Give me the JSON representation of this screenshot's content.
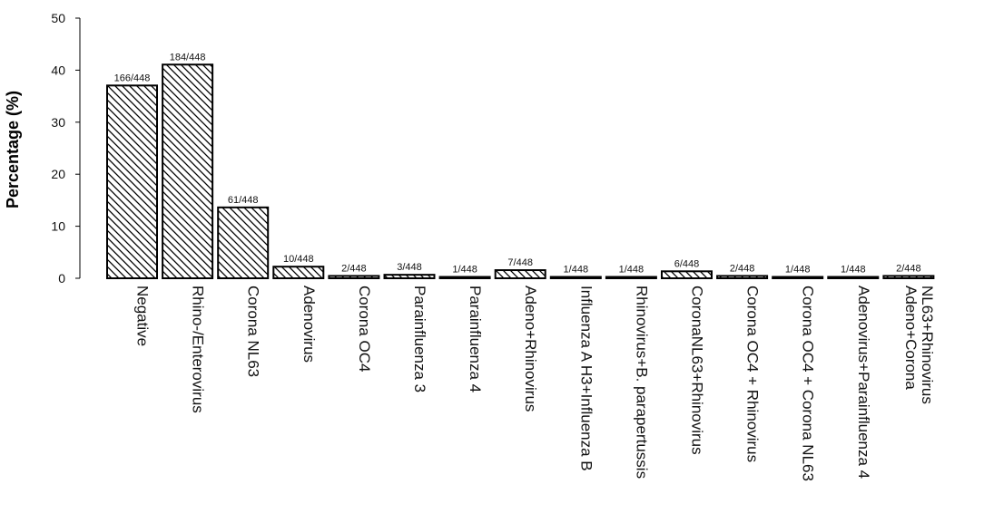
{
  "chart_data": {
    "type": "bar",
    "title": "",
    "xlabel": "",
    "ylabel": "Percentage (%)",
    "ylim": [
      0,
      50
    ],
    "yticks": [
      0,
      10,
      20,
      30,
      40,
      50
    ],
    "grid": false,
    "bar_fill": "diagonal-hatch",
    "categories": [
      "Negative",
      "Rhino-/Enterovirus",
      "Corona NL63",
      "Adenovirus",
      "Corona OC4",
      "Parainfluenza 3",
      "Parainfluenza 4",
      "Adeno+Rhinovirus",
      "Influenza A H3+Influenza B",
      "Rhinovirus+B. parapertussis",
      "CoronaNL63+Rhinovirus",
      "Corona OC4 + Rhinovirus",
      "Corona OC4 + Corona NL63",
      "Adenovirus+Parainfluenza 4",
      "Adeno+Corona NL63+Rhinovirus"
    ],
    "values": [
      37.05,
      41.07,
      13.62,
      2.23,
      0.45,
      0.67,
      0.22,
      1.56,
      0.22,
      0.22,
      1.34,
      0.45,
      0.22,
      0.22,
      0.45
    ],
    "data_labels": [
      "166/448",
      "184/448",
      "61/448",
      "10/448",
      "2/448",
      "3/448",
      "1/448",
      "7/448",
      "1/448",
      "1/448",
      "6/448",
      "2/448",
      "1/448",
      "1/448",
      "2/448"
    ]
  },
  "colors": {
    "axis": "#000000",
    "bar_stroke": "#000000",
    "hatch": "#000000",
    "background": "#ffffff"
  }
}
